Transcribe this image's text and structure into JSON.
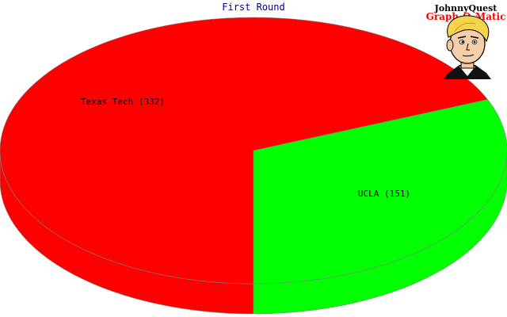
{
  "chart_data": {
    "type": "pie",
    "title": "First Round",
    "slices": [
      {
        "label": "Texas Tech",
        "value": 332,
        "display": "Texas Tech (332)",
        "color": "#ff0000",
        "side_color": "#ff0000"
      },
      {
        "label": "UCLA",
        "value": 151,
        "display": "UCLA (151)",
        "color": "#00ff00",
        "side_color": "#00ff00"
      }
    ],
    "style": "3d"
  },
  "logo": {
    "line1": "JohnnyQuest",
    "line2": "Graph-O-Matic",
    "line1_color": "#000000",
    "line2_color": "#ff0000"
  },
  "colors": {
    "title": "#000080",
    "edge": "#808080"
  }
}
